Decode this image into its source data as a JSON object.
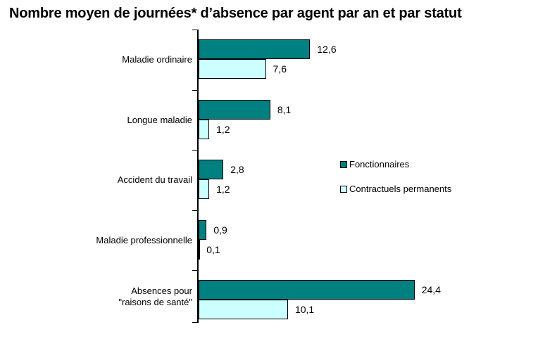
{
  "title": "Nombre moyen de journées* d’absence par agent par an et par statut",
  "chart_data": {
    "type": "bar",
    "orientation": "horizontal",
    "title": "Nombre moyen de journées* d’absence par agent par an et par statut",
    "categories": [
      [
        "Maladie ordinaire"
      ],
      [
        "Longue maladie"
      ],
      [
        "Accident du travail"
      ],
      [
        "Maladie professionnelle"
      ],
      [
        "Absences pour",
        "\"raisons de santé\""
      ]
    ],
    "series": [
      {
        "name": "Fonctionnaires",
        "color": "#008080",
        "values": [
          12.6,
          8.1,
          2.8,
          0.9,
          24.4
        ],
        "labels": [
          "12,6",
          "8,1",
          "2,8",
          "0,9",
          "24,4"
        ]
      },
      {
        "name": "Contractuels permanents",
        "color": "#CCFFFF",
        "values": [
          7.6,
          1.2,
          1.2,
          0.1,
          10.1
        ],
        "labels": [
          "7,6",
          "1,2",
          "1,2",
          "0,1",
          "10,1"
        ]
      }
    ],
    "value_axis_labels_visible": false,
    "grid": false,
    "legend_position": "right",
    "decimal_separator": ","
  }
}
